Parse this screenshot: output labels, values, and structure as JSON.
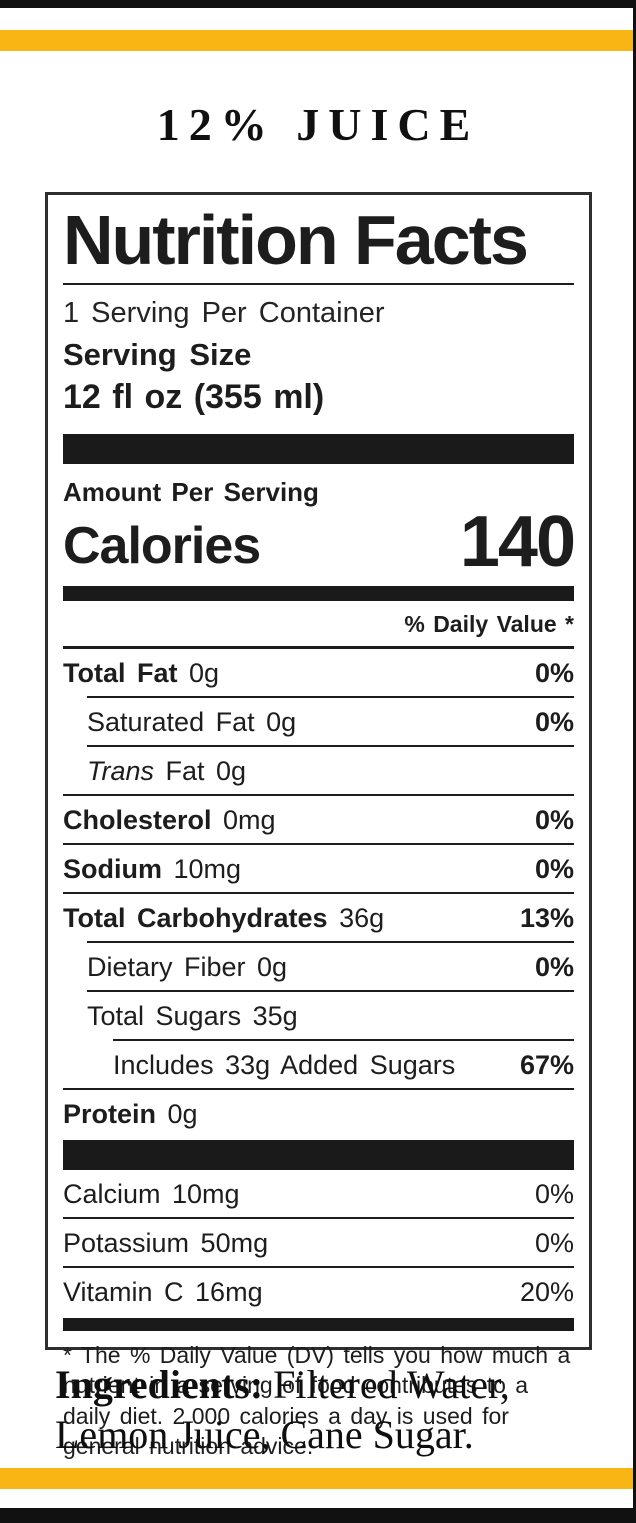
{
  "colors": {
    "accent_yellow": "#F9B513",
    "ink_black": "#1A1A1A"
  },
  "banner": {
    "product_title": "12% JUICE"
  },
  "nutrition_label": {
    "title": "Nutrition Facts",
    "servings_per_container": "1 Serving Per Container",
    "serving_size_label": "Serving Size",
    "serving_size_value": "12 fl oz (355 ml)",
    "amount_per_serving_label": "Amount Per Serving",
    "calories_label": "Calories",
    "calories_value": "140",
    "daily_value_header": "% Daily Value *",
    "nutrients": [
      {
        "bold": "Total Fat",
        "text": "0g",
        "dv": "0%",
        "dv_bold": true,
        "indent": 0,
        "divider": 1
      },
      {
        "bold": "",
        "text": "Saturated Fat 0g",
        "dv": "0%",
        "dv_bold": true,
        "indent": 1,
        "divider": 1
      },
      {
        "italic": "Trans",
        "text": " Fat 0g",
        "dv": "",
        "dv_bold": false,
        "indent": 1,
        "divider": 0
      },
      {
        "bold": "Cholesterol",
        "text": "0mg",
        "dv": "0%",
        "dv_bold": true,
        "indent": 0,
        "divider": 0
      },
      {
        "bold": "Sodium",
        "text": "10mg",
        "dv": "0%",
        "dv_bold": true,
        "indent": 0,
        "divider": 0
      },
      {
        "bold": "Total Carbohydrates",
        "text": "36g",
        "dv": "13%",
        "dv_bold": true,
        "indent": 0,
        "divider": 1
      },
      {
        "bold": "",
        "text": "Dietary Fiber 0g",
        "dv": "0%",
        "dv_bold": true,
        "indent": 1,
        "divider": 1
      },
      {
        "bold": "",
        "text": "Total Sugars 35g",
        "dv": "",
        "dv_bold": false,
        "indent": 1,
        "divider": 2
      },
      {
        "bold": "",
        "text": "Includes 33g Added Sugars",
        "dv": "67%",
        "dv_bold": true,
        "indent": 2,
        "divider": 0
      },
      {
        "bold": "Protein",
        "text": "0g",
        "dv": "",
        "dv_bold": false,
        "indent": 0,
        "divider": null
      }
    ],
    "minerals": [
      {
        "text": "Calcium 10mg",
        "dv": "0%",
        "divider": 0
      },
      {
        "text": "Potassium 50mg",
        "dv": "0%",
        "divider": 0
      },
      {
        "text": "Vitamin C 16mg",
        "dv": "20%",
        "divider": null
      }
    ],
    "footnote": "* The % Daily Value (DV) tells you how much a nutrient in a serving of food contributes to a daily diet. 2,000 calories a day is used for general nutrition advice."
  },
  "ingredients": {
    "label": "Ingredients:",
    "value": "Filtered Water, Lemon Juice, Cane Sugar."
  }
}
